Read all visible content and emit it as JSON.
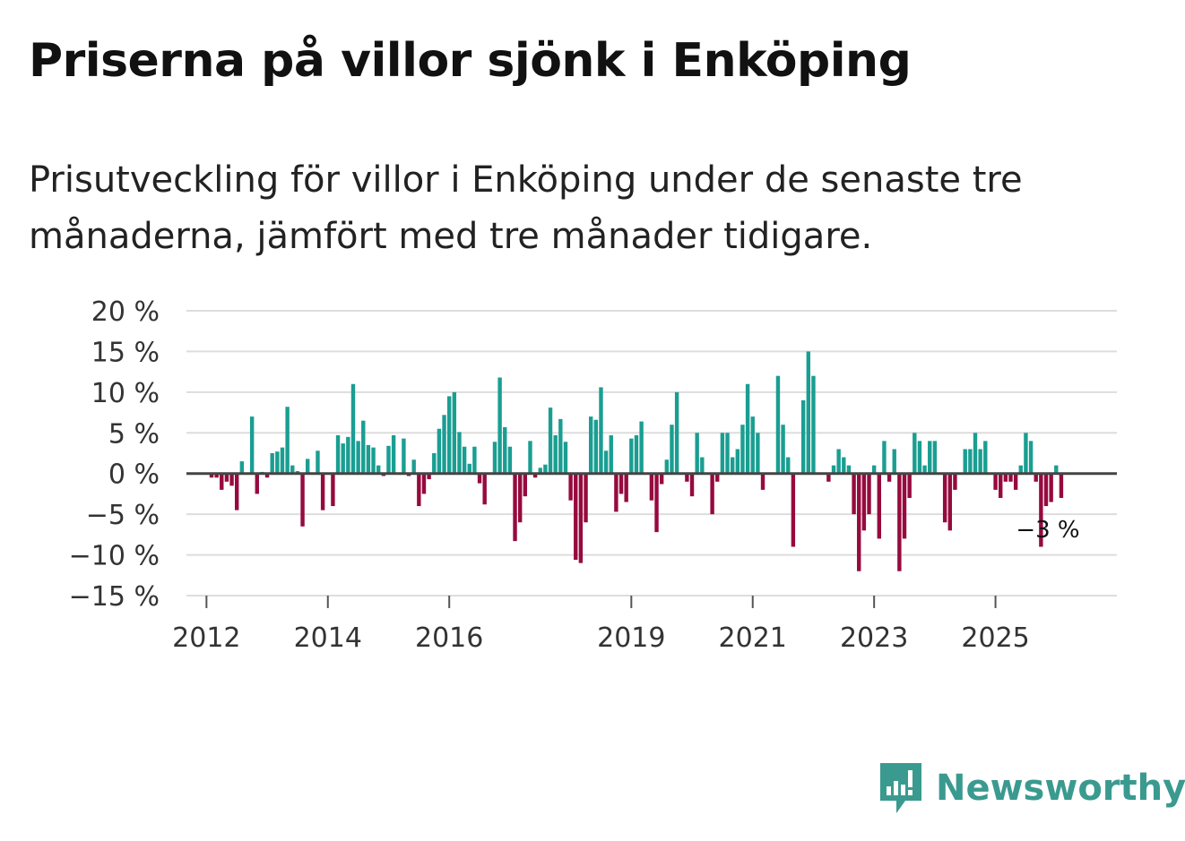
{
  "title": "Priserna på villor sjönk i Enköping",
  "subtitle": "Prisutveckling för villor i Enköping under de senaste tre månaderna, jämfört med tre månader tidigare.",
  "brand": {
    "name": "Newsworthy",
    "color": "#3a9a8f"
  },
  "colors": {
    "positive": "#1a9e92",
    "negative": "#960a3e",
    "grid": "#dddddd",
    "zero": "#444444"
  },
  "chart_data": {
    "type": "bar",
    "title": "Priserna på villor sjönk i Enköping",
    "xlabel": "",
    "ylabel": "",
    "ylim": [
      -15,
      20
    ],
    "y_ticks": [
      20,
      15,
      10,
      5,
      0,
      -5,
      -10,
      -15
    ],
    "y_tick_labels": [
      "20 %",
      "15 %",
      "10 %",
      "5 %",
      "0 %",
      "−5 %",
      "−10 %",
      "−15 %"
    ],
    "x_start": 2011.67,
    "x_end": 2027.0,
    "x_ticks": [
      2012,
      2014,
      2016,
      2019,
      2021,
      2023,
      2025
    ],
    "x_tick_labels": [
      "2012",
      "2014",
      "2016",
      "2019",
      "2021",
      "2023",
      "2025"
    ],
    "series": [
      {
        "name": "Prisutveckling",
        "start_year": 2012,
        "start_month": 1,
        "values": [
          0,
          -0.5,
          -0.5,
          -2,
          -1,
          -1.5,
          -4.5,
          1.5,
          0,
          7,
          -2.5,
          0.2,
          -0.5,
          2.5,
          2.7,
          3.2,
          8.2,
          1,
          0.3,
          -6.5,
          1.8,
          0,
          2.8,
          -4.5,
          0,
          -4,
          4.7,
          3.7,
          4.5,
          11,
          4,
          6.5,
          3.5,
          3.2,
          1,
          -0.3,
          3.4,
          4.7,
          0,
          4.3,
          -0.3,
          1.7,
          -4,
          -2.5,
          -0.7,
          2.5,
          5.5,
          7.2,
          9.5,
          10,
          5.1,
          3.3,
          1.2,
          3.3,
          -1.2,
          -3.8,
          0,
          3.9,
          11.8,
          5.7,
          3.3,
          -8.3,
          -6,
          -2.8,
          4,
          -0.5,
          0.7,
          1.1,
          8.1,
          4.7,
          6.7,
          3.9,
          -3.3,
          -10.6,
          -11,
          -6,
          7,
          6.6,
          10.6,
          2.8,
          4.7,
          -4.7,
          -2.5,
          -3.5,
          4.3,
          4.7,
          6.4,
          0,
          -3.3,
          -7.2,
          -1.3,
          1.7,
          6,
          10,
          0,
          -1,
          -2.8,
          5,
          2,
          0,
          -5,
          -1,
          5,
          5,
          2,
          3,
          6,
          11,
          7,
          5,
          -2,
          0,
          0,
          12,
          6,
          2,
          -9,
          0,
          9,
          15,
          12,
          0,
          0,
          -1,
          1,
          3,
          2,
          1,
          -5,
          -12,
          -7,
          -5,
          1,
          -8,
          4,
          -1,
          3,
          -12,
          -8,
          -3,
          5,
          4,
          1,
          4,
          4,
          0,
          -6,
          -7,
          -2,
          0,
          3,
          3,
          5,
          3,
          4,
          0,
          -2,
          -3,
          -1,
          -1,
          -2,
          1,
          5,
          4,
          -1,
          -9,
          -4,
          -3.5,
          1,
          -3
        ]
      }
    ],
    "annotation": {
      "text": "−3 %",
      "value": -3,
      "year": 2025,
      "month": 11
    }
  }
}
